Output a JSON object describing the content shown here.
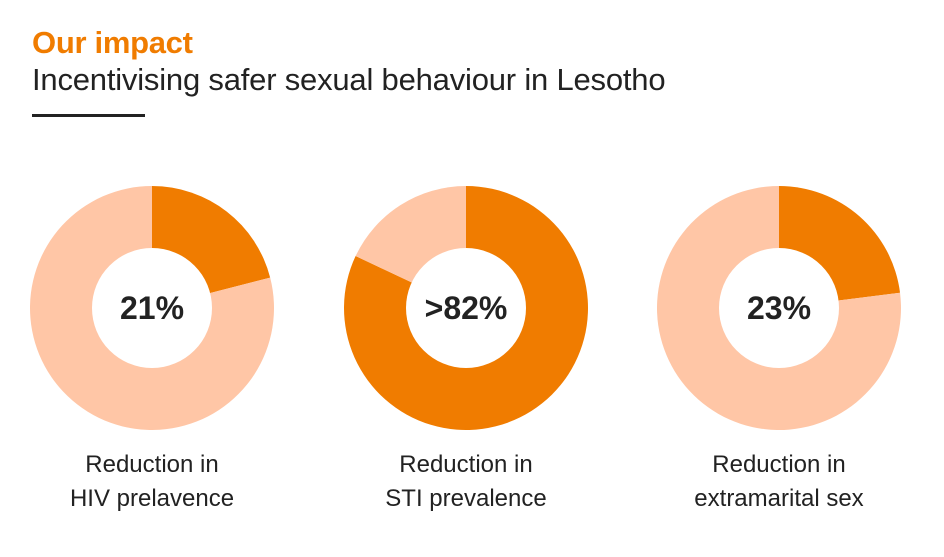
{
  "header": {
    "kicker": "Our impact",
    "title": "Incentivising safer sexual behaviour in Lesotho"
  },
  "colors": {
    "accent": "#f07c00",
    "remainder": "#ffc6a6",
    "hole": "#ffffff"
  },
  "chart_data": [
    {
      "type": "pie",
      "style": "donut",
      "value_label": "21%",
      "values": [
        21,
        79
      ],
      "label_lines": [
        "Reduction in",
        "HIV prelavence"
      ]
    },
    {
      "type": "pie",
      "style": "donut",
      "value_label": ">82%",
      "values": [
        82,
        18
      ],
      "label_lines": [
        "Reduction in",
        "STI prevalence"
      ]
    },
    {
      "type": "pie",
      "style": "donut",
      "value_label": "23%",
      "values": [
        23,
        77
      ],
      "label_lines": [
        "Reduction in",
        "extramarital sex"
      ]
    }
  ]
}
